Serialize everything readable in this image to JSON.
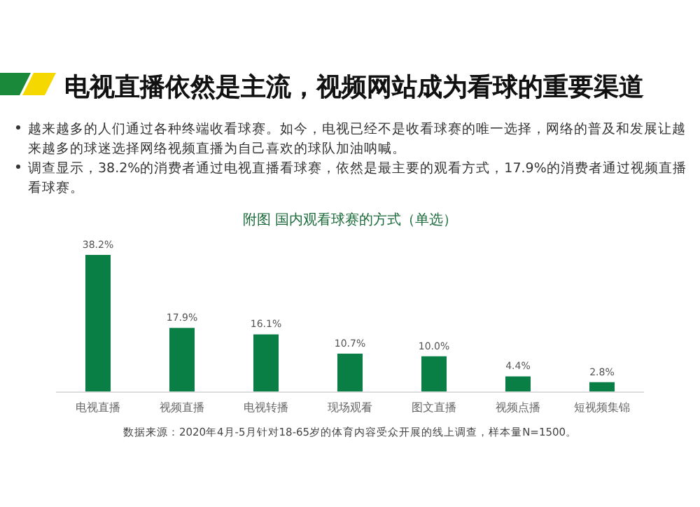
{
  "chart_data": {
    "type": "bar",
    "title": "电视直播依然是主流，视频网站成为看球的重要渠道",
    "subtitle": "附图  国内观看球赛的方式（单选）",
    "annotations": [
      "越来越多的人们通过各种终端收看球赛。如今，电视已经不是收看球赛的唯一选择，网络的普及和发展让越来越多的球迷选择网络视频直播为自己喜欢的球队加油呐喊。",
      "调查显示，38.2%的消费者通过电视直播看球赛，依然是最主要的观看方式，17.9%的消费者通过视频直播看球赛。",
      "数据来源：2020年4月-5月针对18-65岁的体育内容受众开展的线上调查，样本量N=1500。"
    ],
    "categories": [
      "电视直播",
      "视频直播",
      "电视转播",
      "现场观看",
      "图文直播",
      "视频点播",
      "短视频集锦"
    ],
    "values": [
      38.2,
      17.9,
      16.1,
      10.7,
      10.0,
      4.4,
      2.8
    ],
    "value_labels": [
      "38.2%",
      "17.9%",
      "16.1%",
      "10.7%",
      "10.0%",
      "4.4%",
      "2.8%"
    ],
    "color": "#0a7f45",
    "tick_labels": "x",
    "grid": false
  }
}
